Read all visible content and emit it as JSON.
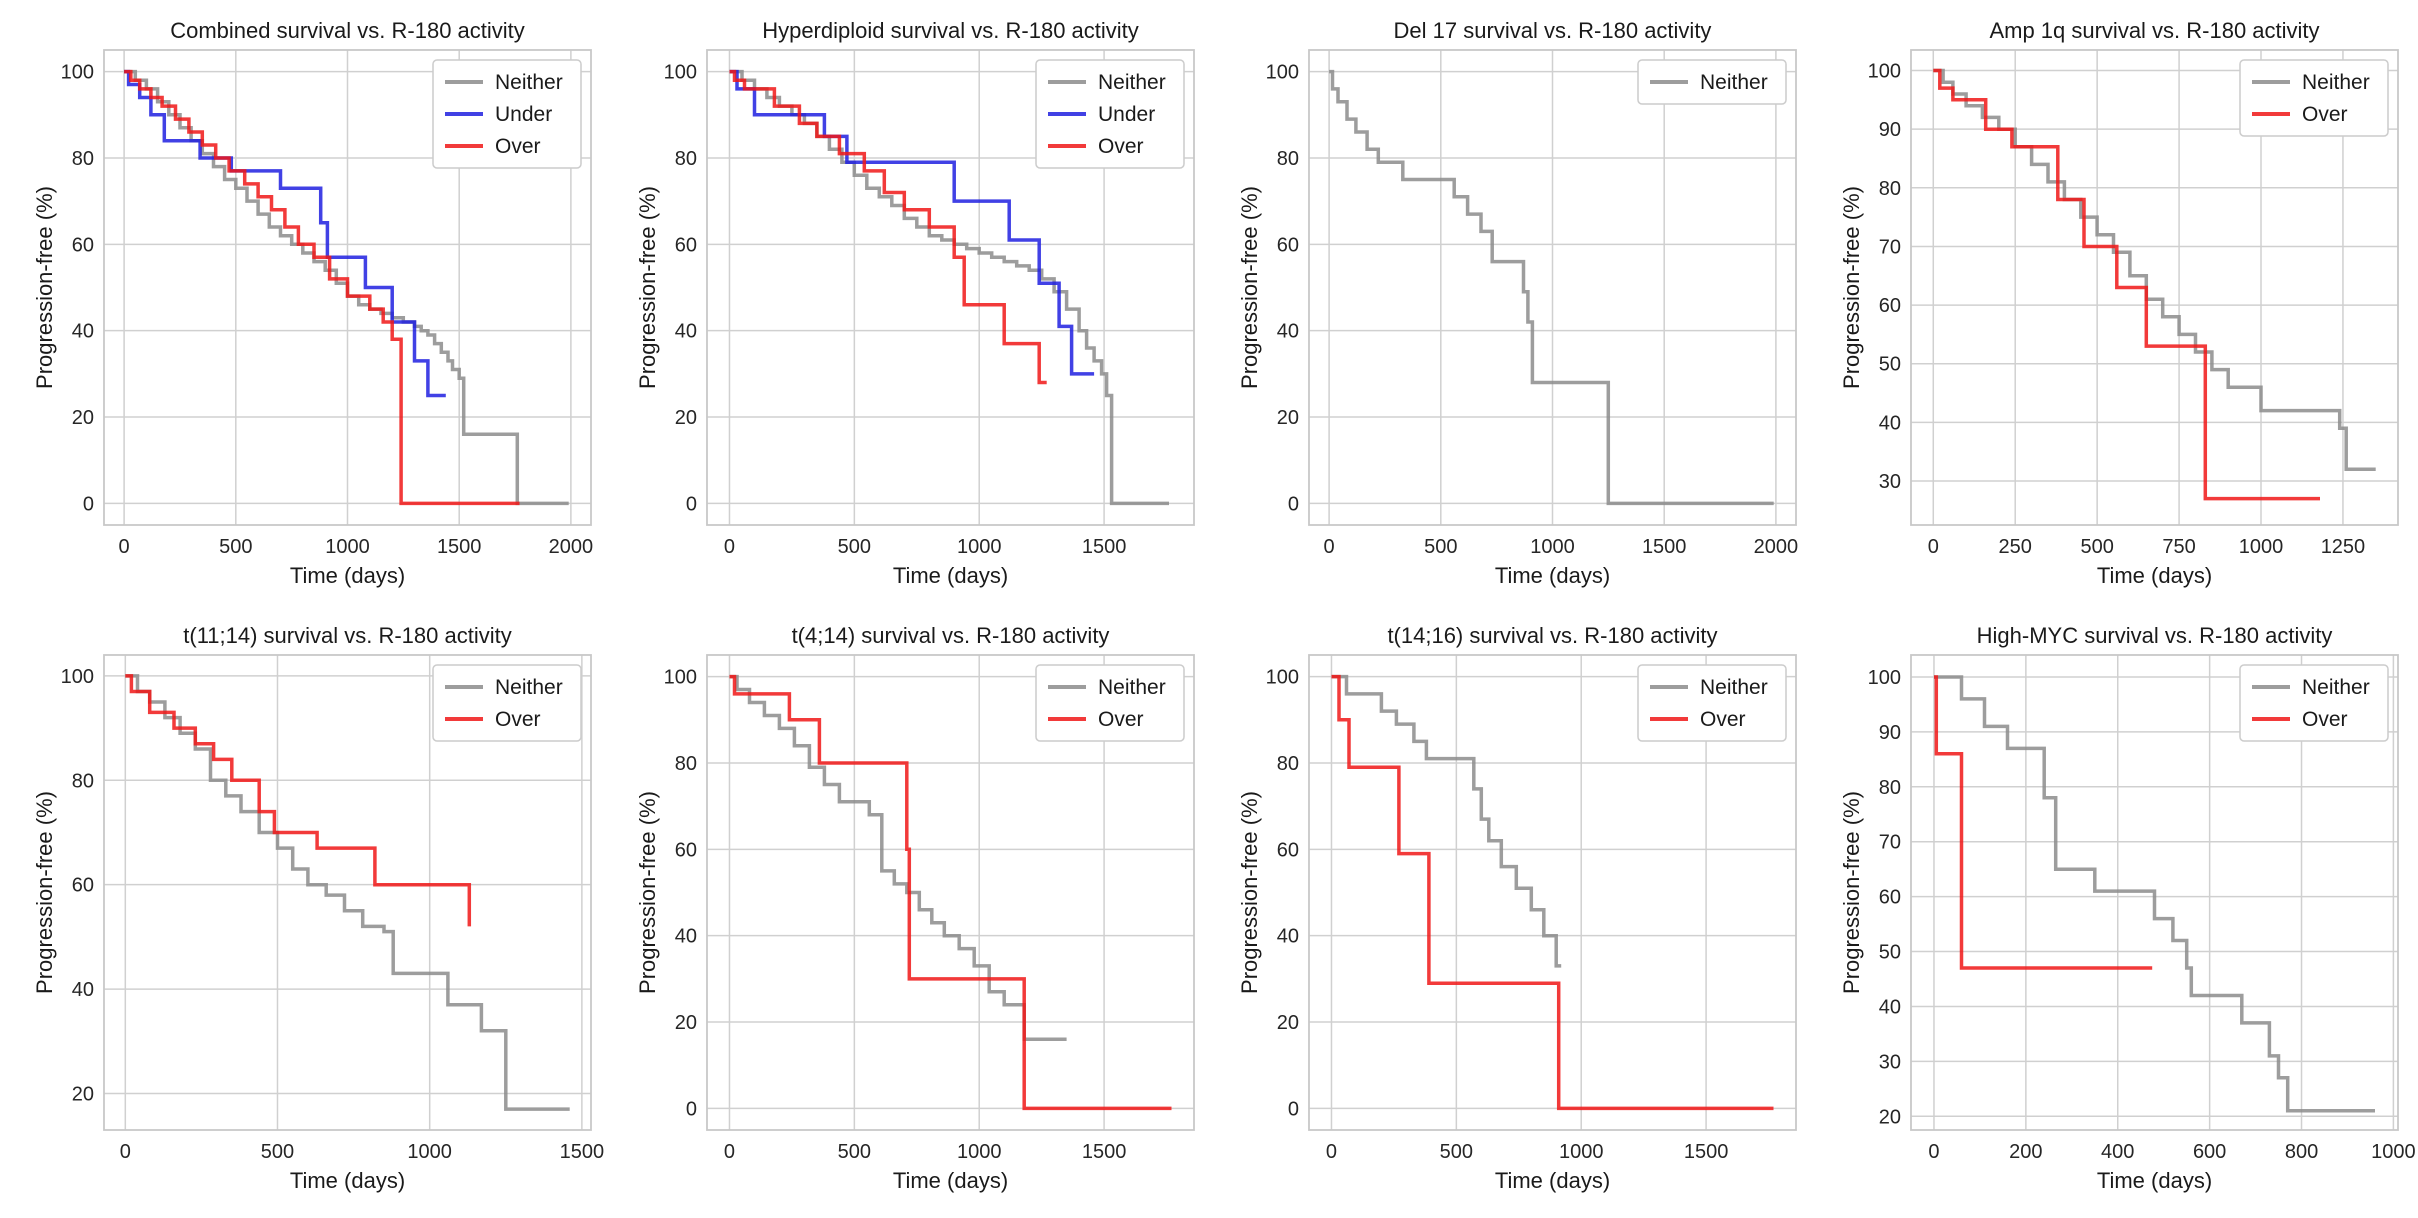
{
  "colors": {
    "Neither": "#8c8c8c",
    "Under": "#2020e0",
    "Over": "#f01818"
  },
  "chart_data": [
    {
      "type": "line",
      "title": "Combined survival vs. R-180 activity",
      "xlabel": "Time (days)",
      "ylabel": "Progression-free (%)",
      "xlim": [
        -90,
        2090
      ],
      "ylim": [
        -5,
        105
      ],
      "xticks": [
        0,
        500,
        1000,
        1500,
        2000
      ],
      "yticks": [
        0,
        20,
        40,
        60,
        80,
        100
      ],
      "legend": "top-right",
      "grid": true,
      "series": [
        {
          "name": "Neither",
          "x": [
            0,
            50,
            100,
            150,
            200,
            250,
            300,
            350,
            400,
            450,
            500,
            550,
            600,
            650,
            700,
            750,
            800,
            850,
            900,
            950,
            1000,
            1050,
            1100,
            1150,
            1200,
            1250,
            1300,
            1330,
            1360,
            1390,
            1420,
            1450,
            1470,
            1500,
            1520,
            1760,
            1990
          ],
          "y": [
            100,
            98,
            96,
            93,
            90,
            87,
            84,
            81,
            78,
            75,
            73,
            70,
            67,
            64,
            62,
            60,
            58,
            56,
            54,
            51,
            48,
            46,
            45,
            44,
            43,
            42,
            41,
            40,
            39,
            37,
            35,
            33,
            31,
            29,
            16,
            0,
            0
          ]
        },
        {
          "name": "Under",
          "x": [
            0,
            20,
            70,
            120,
            180,
            340,
            480,
            700,
            880,
            910,
            1080,
            1200,
            1300,
            1360,
            1440
          ],
          "y": [
            100,
            97,
            94,
            90,
            84,
            80,
            77,
            73,
            65,
            57,
            50,
            42,
            33,
            25,
            25
          ]
        },
        {
          "name": "Over",
          "x": [
            0,
            30,
            70,
            120,
            170,
            230,
            290,
            350,
            410,
            470,
            540,
            600,
            660,
            720,
            780,
            850,
            920,
            1000,
            1100,
            1160,
            1200,
            1240,
            1520,
            1770
          ],
          "y": [
            100,
            98,
            96,
            94,
            92,
            89,
            86,
            83,
            80,
            77,
            74,
            71,
            68,
            64,
            60,
            57,
            52,
            48,
            45,
            42,
            38,
            0,
            0,
            0
          ]
        }
      ]
    },
    {
      "type": "line",
      "title": "Hyperdiploid survival vs. R-180 activity",
      "xlabel": "Time (days)",
      "ylabel": "Progression-free (%)",
      "xlim": [
        -90,
        1860
      ],
      "ylim": [
        -5,
        105
      ],
      "xticks": [
        0,
        500,
        1000,
        1500
      ],
      "yticks": [
        0,
        20,
        40,
        60,
        80,
        100
      ],
      "legend": "top-right",
      "grid": true,
      "series": [
        {
          "name": "Neither",
          "x": [
            0,
            50,
            100,
            150,
            200,
            250,
            300,
            350,
            400,
            450,
            500,
            550,
            600,
            650,
            700,
            750,
            800,
            850,
            900,
            950,
            1000,
            1050,
            1100,
            1150,
            1200,
            1250,
            1300,
            1350,
            1400,
            1430,
            1460,
            1490,
            1510,
            1530,
            1760
          ],
          "y": [
            100,
            98,
            96,
            94,
            92,
            90,
            88,
            85,
            82,
            79,
            76,
            73,
            71,
            69,
            66,
            64,
            62,
            61,
            60,
            59,
            58,
            57,
            56,
            55,
            54,
            52,
            49,
            45,
            40,
            36,
            33,
            30,
            25,
            0,
            0
          ]
        },
        {
          "name": "Under",
          "x": [
            0,
            30,
            100,
            380,
            470,
            900,
            1120,
            1240,
            1320,
            1370,
            1460
          ],
          "y": [
            100,
            96,
            90,
            85,
            79,
            70,
            61,
            51,
            41,
            30,
            30
          ]
        },
        {
          "name": "Over",
          "x": [
            0,
            20,
            60,
            180,
            280,
            350,
            440,
            540,
            620,
            700,
            800,
            900,
            940,
            1100,
            1240,
            1270
          ],
          "y": [
            100,
            98,
            96,
            92,
            88,
            85,
            81,
            77,
            72,
            68,
            64,
            57,
            46,
            37,
            28,
            28
          ]
        }
      ]
    },
    {
      "type": "line",
      "title": "Del 17 survival vs. R-180 activity",
      "xlabel": "Time (days)",
      "ylabel": "Progression-free (%)",
      "xlim": [
        -90,
        2090
      ],
      "ylim": [
        -5,
        105
      ],
      "xticks": [
        0,
        500,
        1000,
        1500,
        2000
      ],
      "yticks": [
        0,
        20,
        40,
        60,
        80,
        100
      ],
      "legend": "top-right",
      "grid": true,
      "series": [
        {
          "name": "Neither",
          "x": [
            0,
            15,
            40,
            80,
            120,
            170,
            220,
            330,
            560,
            620,
            680,
            730,
            870,
            890,
            910,
            1250,
            1990
          ],
          "y": [
            100,
            96,
            93,
            89,
            86,
            82,
            79,
            75,
            71,
            67,
            63,
            56,
            49,
            42,
            28,
            0,
            0
          ]
        }
      ]
    },
    {
      "type": "line",
      "title": "Amp 1q survival vs. R-180 activity",
      "xlabel": "Time (days)",
      "ylabel": "Progression-free (%)",
      "xlim": [
        -68,
        1418
      ],
      "ylim": [
        22.5,
        103.5
      ],
      "xticks": [
        0,
        250,
        500,
        750,
        1000,
        1250
      ],
      "yticks": [
        30,
        40,
        50,
        60,
        70,
        80,
        90,
        100
      ],
      "legend": "top-right",
      "grid": true,
      "series": [
        {
          "name": "Neither",
          "x": [
            0,
            30,
            60,
            100,
            150,
            200,
            250,
            300,
            350,
            400,
            450,
            500,
            550,
            600,
            650,
            700,
            750,
            800,
            850,
            900,
            1000,
            1240,
            1260,
            1350
          ],
          "y": [
            100,
            98,
            96,
            94,
            92,
            90,
            87,
            84,
            81,
            78,
            75,
            72,
            69,
            65,
            61,
            58,
            55,
            52,
            49,
            46,
            42,
            39,
            32,
            32
          ]
        },
        {
          "name": "Over",
          "x": [
            0,
            20,
            60,
            160,
            240,
            380,
            460,
            560,
            650,
            830,
            1180
          ],
          "y": [
            100,
            97,
            95,
            90,
            87,
            78,
            70,
            63,
            53,
            27,
            27
          ]
        }
      ]
    },
    {
      "type": "line",
      "title": "t(11;14) survival vs. R-180 activity",
      "xlabel": "Time (days)",
      "ylabel": "Progression-free (%)",
      "xlim": [
        -70,
        1530
      ],
      "ylim": [
        13,
        104
      ],
      "xticks": [
        0,
        500,
        1000,
        1500
      ],
      "yticks": [
        20,
        40,
        60,
        80,
        100
      ],
      "legend": "top-right",
      "grid": true,
      "series": [
        {
          "name": "Neither",
          "x": [
            0,
            40,
            80,
            130,
            180,
            230,
            280,
            330,
            380,
            440,
            500,
            550,
            600,
            660,
            720,
            780,
            850,
            880,
            1060,
            1170,
            1250,
            1460
          ],
          "y": [
            100,
            97,
            95,
            92,
            89,
            86,
            80,
            77,
            74,
            70,
            67,
            63,
            60,
            58,
            55,
            52,
            51,
            43,
            37,
            32,
            17,
            17
          ]
        },
        {
          "name": "Over",
          "x": [
            0,
            20,
            80,
            160,
            230,
            290,
            350,
            440,
            490,
            630,
            820,
            1130
          ],
          "y": [
            100,
            97,
            93,
            90,
            87,
            84,
            80,
            74,
            70,
            67,
            60,
            52
          ]
        }
      ]
    },
    {
      "type": "line",
      "title": "t(4;14) survival vs. R-180 activity",
      "xlabel": "Time (days)",
      "ylabel": "Progression-free (%)",
      "xlim": [
        -90,
        1860
      ],
      "ylim": [
        -5,
        105
      ],
      "xticks": [
        0,
        500,
        1000,
        1500
      ],
      "yticks": [
        0,
        20,
        40,
        60,
        80,
        100
      ],
      "legend": "top-right",
      "grid": true,
      "series": [
        {
          "name": "Neither",
          "x": [
            0,
            30,
            80,
            140,
            200,
            260,
            320,
            380,
            440,
            500,
            560,
            610,
            660,
            710,
            760,
            810,
            860,
            920,
            980,
            1040,
            1100,
            1180,
            1350
          ],
          "y": [
            100,
            97,
            94,
            91,
            88,
            84,
            79,
            75,
            71,
            71,
            68,
            55,
            52,
            50,
            46,
            43,
            40,
            37,
            33,
            27,
            24,
            16,
            16
          ]
        },
        {
          "name": "Over",
          "x": [
            0,
            20,
            240,
            360,
            700,
            710,
            720,
            1180,
            1770
          ],
          "y": [
            100,
            96,
            90,
            80,
            80,
            60,
            30,
            0,
            0
          ]
        }
      ]
    },
    {
      "type": "line",
      "title": "t(14;16) survival vs. R-180 activity",
      "xlabel": "Time (days)",
      "ylabel": "Progression-free (%)",
      "xlim": [
        -90,
        1860
      ],
      "ylim": [
        -5,
        105
      ],
      "xticks": [
        0,
        500,
        1000,
        1500
      ],
      "yticks": [
        0,
        20,
        40,
        60,
        80,
        100
      ],
      "legend": "top-right",
      "grid": true,
      "series": [
        {
          "name": "Neither",
          "x": [
            0,
            60,
            200,
            260,
            330,
            380,
            570,
            600,
            630,
            680,
            740,
            800,
            850,
            900,
            920
          ],
          "y": [
            100,
            96,
            92,
            89,
            85,
            81,
            74,
            67,
            62,
            56,
            51,
            46,
            40,
            33,
            33
          ]
        },
        {
          "name": "Over",
          "x": [
            0,
            30,
            70,
            270,
            390,
            910,
            1770
          ],
          "y": [
            100,
            90,
            79,
            59,
            29,
            0,
            0
          ]
        }
      ]
    },
    {
      "type": "line",
      "title": "High-MYC survival vs. R-180 activity",
      "xlabel": "Time (days)",
      "ylabel": "Progression-free (%)",
      "xlim": [
        -50,
        1010
      ],
      "ylim": [
        17.5,
        104
      ],
      "xticks": [
        0,
        200,
        400,
        600,
        800,
        1000
      ],
      "yticks": [
        20,
        30,
        40,
        50,
        60,
        70,
        80,
        90,
        100
      ],
      "legend": "top-right",
      "grid": true,
      "series": [
        {
          "name": "Neither",
          "x": [
            0,
            60,
            110,
            160,
            240,
            265,
            350,
            480,
            520,
            550,
            560,
            670,
            730,
            750,
            770,
            960
          ],
          "y": [
            100,
            96,
            91,
            87,
            78,
            65,
            61,
            56,
            52,
            47,
            42,
            37,
            31,
            27,
            21,
            21
          ]
        },
        {
          "name": "Over",
          "x": [
            0,
            5,
            60,
            475
          ],
          "y": [
            100,
            86,
            47,
            47
          ]
        }
      ]
    }
  ]
}
